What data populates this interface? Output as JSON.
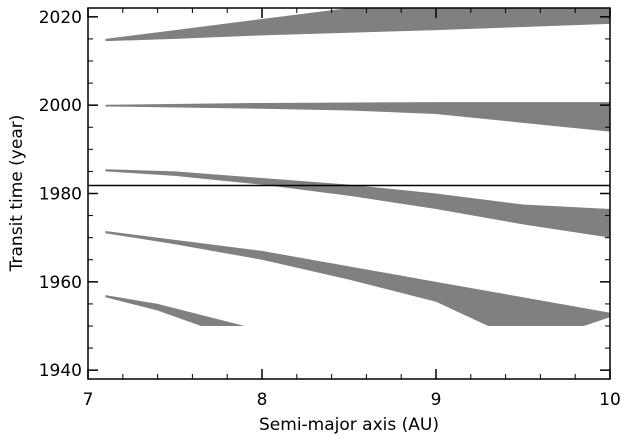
{
  "chart_data": {
    "type": "area",
    "title": "",
    "xlabel": "Semi-major axis (AU)",
    "ylabel": "Transit time (year)",
    "xlim": [
      7,
      10
    ],
    "ylim": [
      1938,
      2022
    ],
    "xticks": [
      7,
      8,
      9,
      10
    ],
    "xtick_labels": [
      "7",
      "8",
      "9",
      "10"
    ],
    "yticks": [
      1940,
      1960,
      1980,
      2000,
      2020
    ],
    "ytick_labels": [
      "1940",
      "1960",
      "1980",
      "2000",
      "2020"
    ],
    "reference_line_y": 1981.8,
    "band_color": "#808080",
    "grid": false,
    "bands": [
      {
        "upper": [
          [
            7.1,
            2015.0
          ],
          [
            7.5,
            2017.0
          ],
          [
            8.0,
            2019.5
          ],
          [
            8.5,
            2022.0
          ],
          [
            10.0,
            2022.0
          ]
        ],
        "lower": [
          [
            7.1,
            2014.5
          ],
          [
            7.5,
            2015.0
          ],
          [
            8.0,
            2015.8
          ],
          [
            9.0,
            2017.0
          ],
          [
            9.5,
            2017.7
          ],
          [
            10.0,
            2018.4
          ]
        ]
      },
      {
        "upper": [
          [
            7.1,
            2000.1
          ],
          [
            8.0,
            2000.5
          ],
          [
            9.0,
            2000.7
          ],
          [
            10.0,
            2000.7
          ]
        ],
        "lower": [
          [
            7.1,
            1999.7
          ],
          [
            8.0,
            1999.2
          ],
          [
            8.5,
            1998.8
          ],
          [
            9.0,
            1998.0
          ],
          [
            9.5,
            1996.0
          ],
          [
            10.0,
            1994.0
          ]
        ]
      },
      {
        "upper": [
          [
            7.1,
            1985.5
          ],
          [
            7.5,
            1985.0
          ],
          [
            8.0,
            1983.5
          ],
          [
            8.5,
            1982.0
          ],
          [
            9.0,
            1980.0
          ],
          [
            9.5,
            1977.5
          ],
          [
            10.0,
            1976.5
          ]
        ],
        "lower": [
          [
            7.1,
            1985.0
          ],
          [
            7.5,
            1984.0
          ],
          [
            8.0,
            1982.0
          ],
          [
            8.5,
            1979.5
          ],
          [
            9.0,
            1976.5
          ],
          [
            9.5,
            1973.0
          ],
          [
            10.0,
            1970.0
          ]
        ]
      },
      {
        "upper": [
          [
            7.1,
            1971.5
          ],
          [
            7.5,
            1969.5
          ],
          [
            8.0,
            1967.0
          ],
          [
            8.5,
            1963.5
          ],
          [
            9.0,
            1960.0
          ],
          [
            9.5,
            1956.5
          ],
          [
            10.0,
            1953.0
          ]
        ],
        "lower": [
          [
            7.1,
            1971.0
          ],
          [
            7.5,
            1968.5
          ],
          [
            8.0,
            1965.0
          ],
          [
            8.5,
            1960.5
          ],
          [
            9.0,
            1955.5
          ],
          [
            9.3,
            1950.0
          ],
          [
            9.85,
            1950.0
          ],
          [
            10.0,
            1952.0
          ]
        ]
      },
      {
        "upper": [
          [
            7.1,
            1957.0
          ],
          [
            7.4,
            1955.0
          ],
          [
            7.9,
            1950.0
          ]
        ],
        "lower": [
          [
            7.1,
            1956.5
          ],
          [
            7.4,
            1953.5
          ],
          [
            7.65,
            1950.0
          ]
        ]
      }
    ]
  }
}
